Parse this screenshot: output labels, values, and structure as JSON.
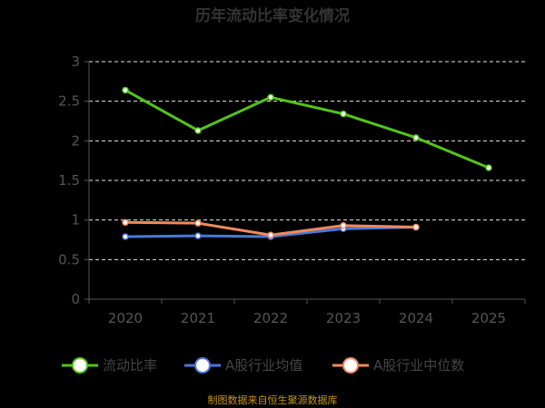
{
  "chart_data": {
    "type": "line",
    "title": "历年流动比率变化情况",
    "categories": [
      "2020",
      "2021",
      "2022",
      "2023",
      "2024",
      "2025"
    ],
    "y_ticks": [
      "0",
      "0.5",
      "1",
      "1.5",
      "2",
      "2.5",
      "3"
    ],
    "ylim": [
      0,
      3
    ],
    "grid": "horizontal-dashed",
    "legend_position": "bottom",
    "series": [
      {
        "name": "流动比率",
        "color": "#52c41a",
        "values": [
          2.64,
          2.13,
          2.55,
          2.34,
          2.04,
          1.66
        ]
      },
      {
        "name": "A股行业均值",
        "color": "#4a78d8",
        "values": [
          0.79,
          0.8,
          0.79,
          0.89,
          0.91,
          null
        ]
      },
      {
        "name": "A股行业中位数",
        "color": "#f08a5d",
        "values": [
          0.97,
          0.96,
          0.81,
          0.93,
          0.91,
          null
        ]
      }
    ]
  },
  "source_text": "制图数据来自恒生聚源数据库"
}
